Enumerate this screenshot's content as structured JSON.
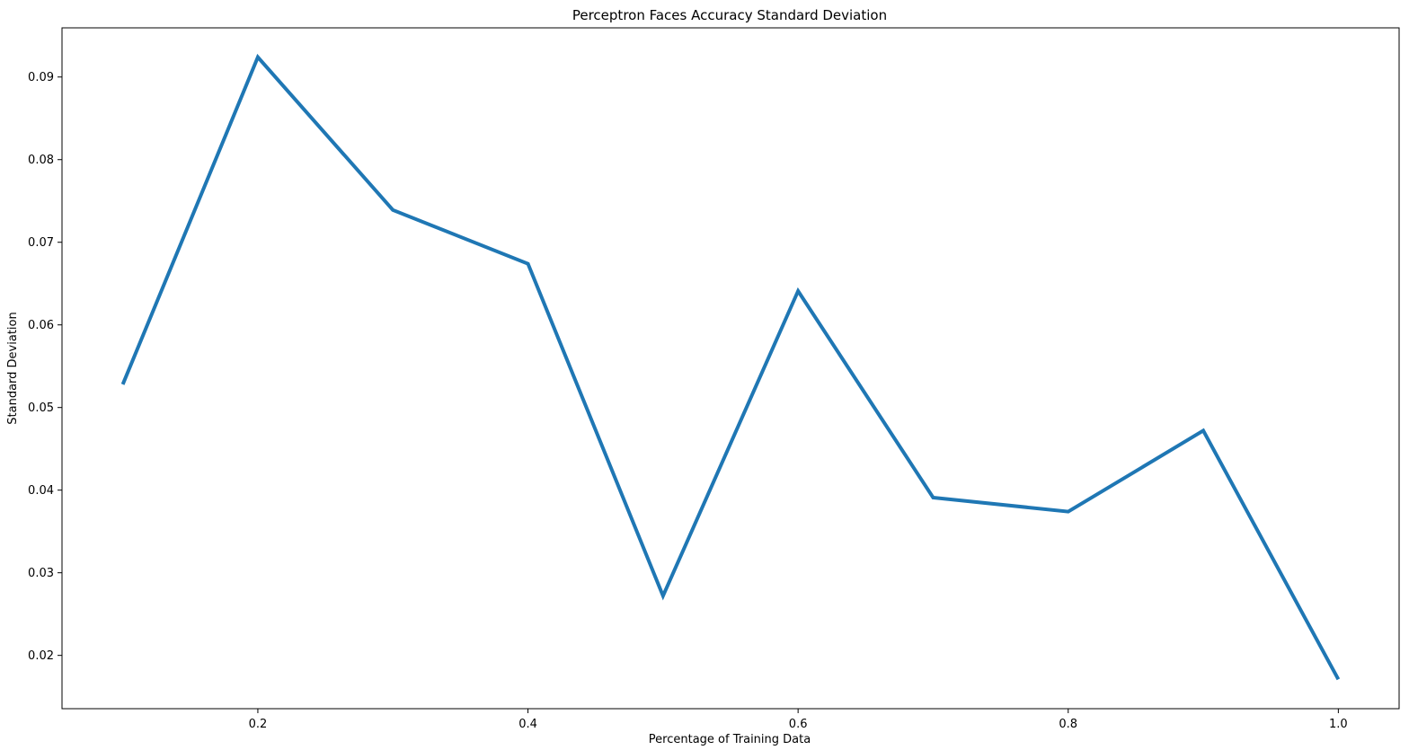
{
  "chart_data": {
    "type": "line",
    "title": "Perceptron Faces Accuracy Standard Deviation",
    "xlabel": "Percentage of Training Data",
    "ylabel": "Standard Deviation",
    "xlim": [
      0.055,
      1.045
    ],
    "ylim": [
      0.01355,
      0.09595
    ],
    "xticks": [
      0.2,
      0.4,
      0.6,
      0.8,
      1.0
    ],
    "xtick_labels": [
      "0.2",
      "0.4",
      "0.6",
      "0.8",
      "1.0"
    ],
    "yticks": [
      0.02,
      0.03,
      0.04,
      0.05,
      0.06,
      0.07,
      0.08,
      0.09
    ],
    "ytick_labels": [
      "0.02",
      "0.03",
      "0.04",
      "0.05",
      "0.06",
      "0.07",
      "0.08",
      "0.09"
    ],
    "grid": false,
    "series": [
      {
        "color": "#1f77b4",
        "x": [
          0.1,
          0.2,
          0.3,
          0.4,
          0.5,
          0.6,
          0.7,
          0.8,
          0.9,
          1.0
        ],
        "y": [
          0.0528,
          0.0924,
          0.0739,
          0.0674,
          0.0272,
          0.0641,
          0.0391,
          0.0374,
          0.0472,
          0.0171
        ]
      }
    ]
  }
}
